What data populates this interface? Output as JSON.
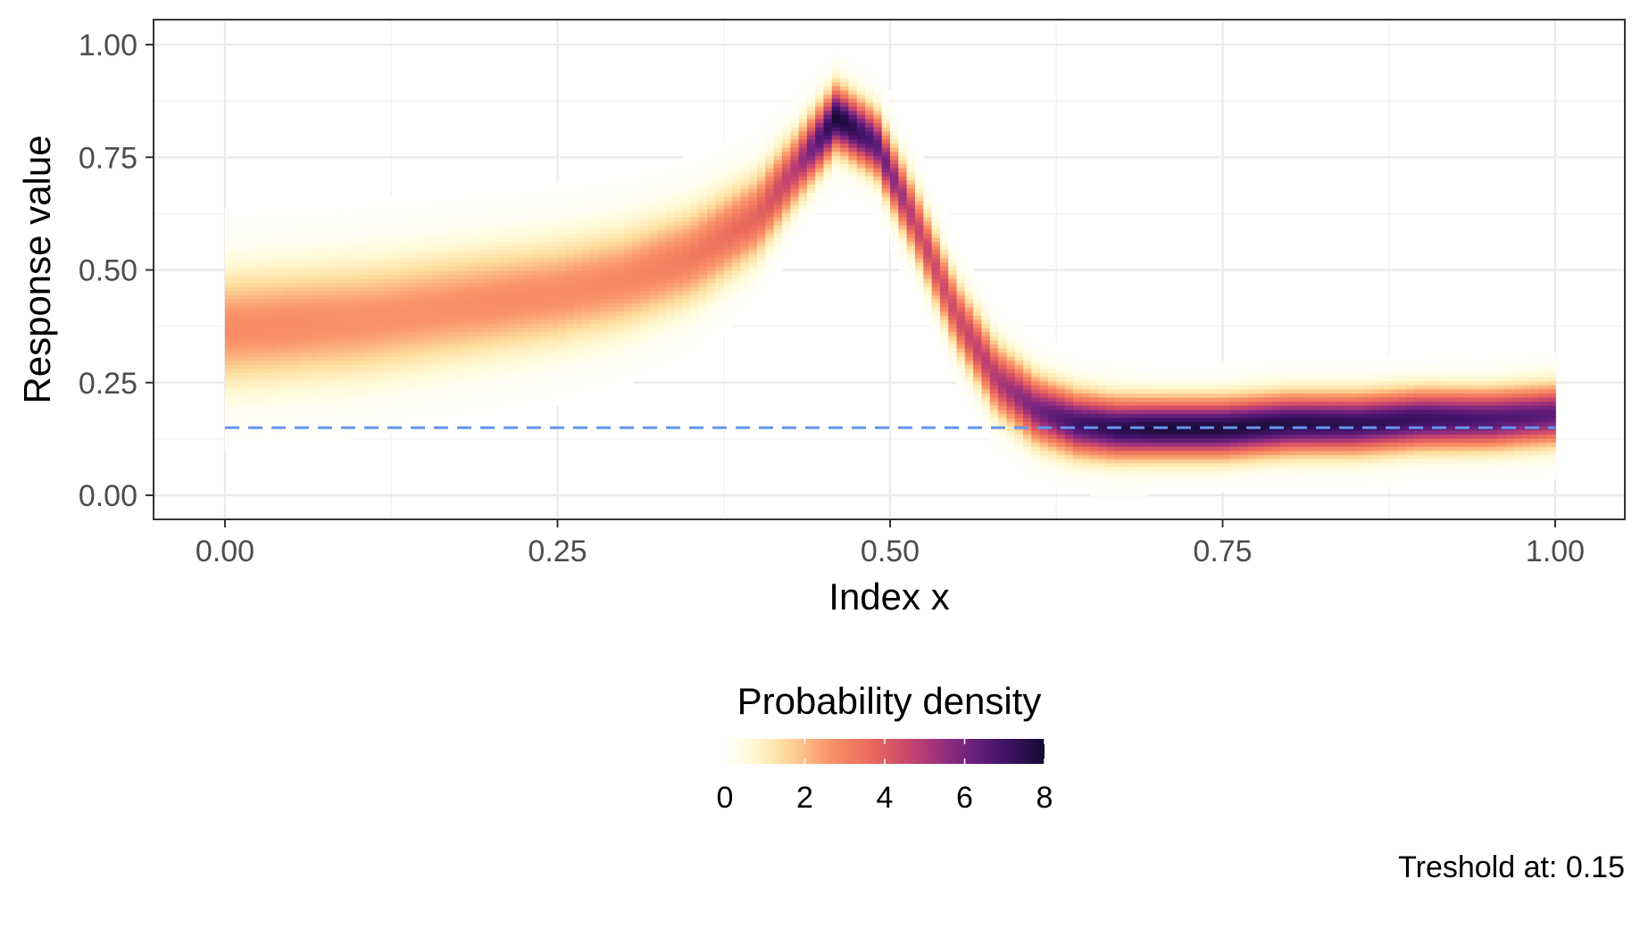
{
  "chart_data": {
    "type": "heatmap",
    "xlabel": "Index x",
    "ylabel": "Response value",
    "xlim": [
      0,
      1
    ],
    "ylim": [
      0,
      1
    ],
    "x_ticks": [
      "0.00",
      "0.25",
      "0.50",
      "0.75",
      "1.00"
    ],
    "y_ticks": [
      "0.00",
      "0.25",
      "0.50",
      "0.75",
      "1.00"
    ],
    "grid": true,
    "density_ridge": {
      "x": [
        0.0,
        0.05,
        0.1,
        0.15,
        0.2,
        0.25,
        0.3,
        0.35,
        0.4,
        0.43,
        0.46,
        0.49,
        0.52,
        0.55,
        0.58,
        0.61,
        0.64,
        0.67,
        0.7,
        0.75,
        0.8,
        0.85,
        0.9,
        0.95,
        1.0
      ],
      "mean": [
        0.37,
        0.38,
        0.39,
        0.41,
        0.43,
        0.45,
        0.48,
        0.53,
        0.62,
        0.73,
        0.84,
        0.78,
        0.6,
        0.4,
        0.26,
        0.19,
        0.16,
        0.15,
        0.15,
        0.15,
        0.16,
        0.16,
        0.17,
        0.17,
        0.18
      ],
      "sd": [
        0.085,
        0.085,
        0.085,
        0.083,
        0.08,
        0.078,
        0.075,
        0.07,
        0.06,
        0.05,
        0.045,
        0.046,
        0.05,
        0.05,
        0.05,
        0.048,
        0.045,
        0.043,
        0.042,
        0.042,
        0.042,
        0.042,
        0.042,
        0.042,
        0.042
      ],
      "peak_density": [
        2.8,
        2.8,
        2.7,
        2.7,
        2.8,
        2.8,
        2.9,
        3.2,
        3.8,
        5.0,
        8.0,
        6.5,
        4.6,
        4.4,
        5.0,
        6.0,
        7.0,
        7.5,
        7.8,
        7.8,
        7.6,
        7.4,
        7.2,
        6.8,
        6.5
      ]
    },
    "threshold": {
      "value": 0.15,
      "color": "#6495ED",
      "style": "dashed"
    },
    "legend": {
      "title": "Probability density",
      "placement": "bottom",
      "ticks": [
        "0",
        "2",
        "4",
        "6",
        "8"
      ],
      "range": [
        0,
        8
      ],
      "colormap": "magma (reversed)"
    },
    "caption": "Treshold at: 0.15"
  }
}
